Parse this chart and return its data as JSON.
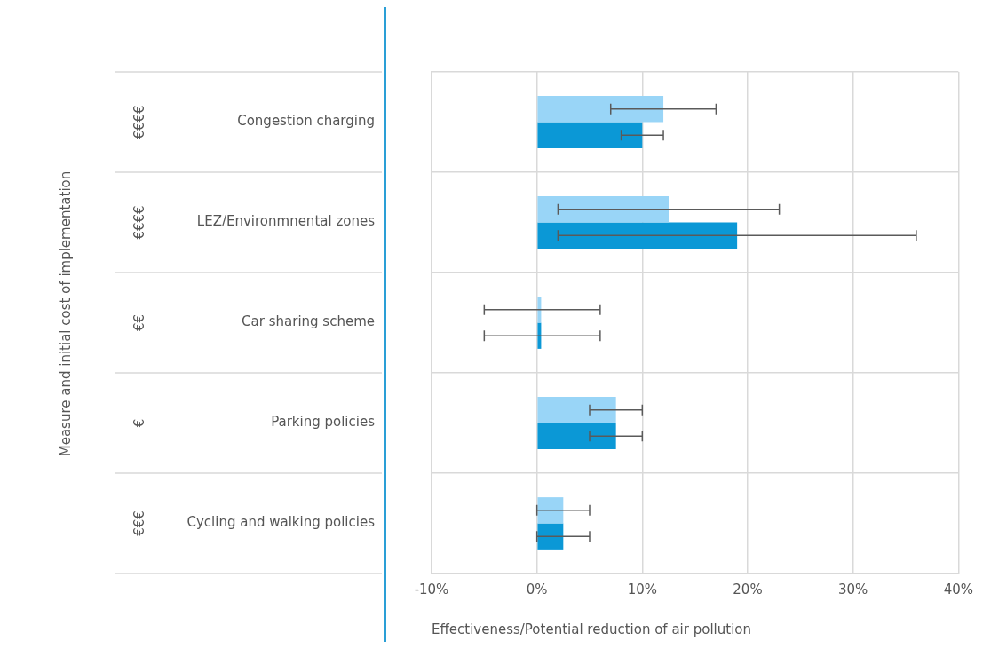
{
  "chart_data": {
    "type": "bar",
    "orientation": "horizontal",
    "xlabel": "Effectiveness/Potential reduction of air pollution",
    "categories": [
      "Congestion charging",
      "LEZ/Environmnental zones",
      "Car sharing scheme",
      "Parking policies",
      "Cycling and walking policies"
    ],
    "series": [
      {
        "color": "#99d5f7",
        "values": [
          12,
          12.5,
          0.4,
          7.5,
          2.5
        ],
        "errors": [
          [
            7,
            17
          ],
          [
            2,
            23
          ],
          [
            -5,
            6
          ],
          [
            5,
            10
          ],
          [
            0,
            5
          ]
        ]
      },
      {
        "color": "#0b98d6",
        "values": [
          10,
          19,
          0.4,
          7.5,
          2.5
        ],
        "errors": [
          [
            8,
            12
          ],
          [
            2,
            36
          ],
          [
            -5,
            6
          ],
          [
            5,
            10
          ],
          [
            0,
            5
          ]
        ]
      }
    ],
    "annotations": [
      "Measure and initial cost of implementation",
      "€€€€",
      "€€€€",
      "€€",
      "€",
      "€€€"
    ],
    "xlim": [
      -10,
      40
    ],
    "xticks": [
      {
        "value": -10,
        "label": "-10%"
      },
      {
        "value": 0,
        "label": "0%"
      },
      {
        "value": 10,
        "label": "10%"
      },
      {
        "value": 20,
        "label": "20%"
      },
      {
        "value": 30,
        "label": "30%"
      },
      {
        "value": 40,
        "label": "40%"
      }
    ],
    "grid": true,
    "legend": false
  }
}
